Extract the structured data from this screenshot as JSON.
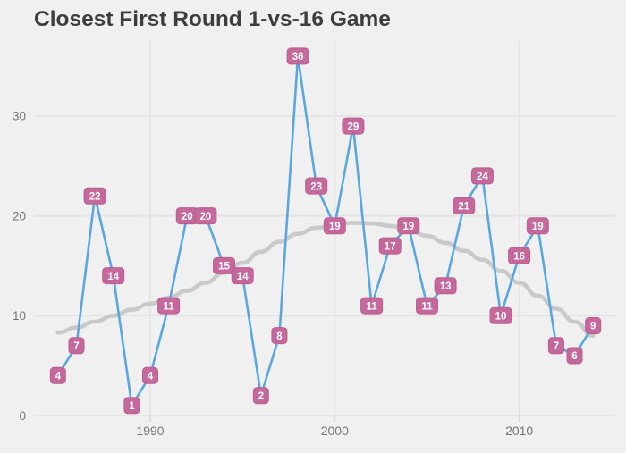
{
  "title": "Closest First Round 1-vs-16 Game",
  "colors": {
    "background": "#f0f0f0",
    "gridline": "#e2e2e2",
    "tick_mark": "#d7d7d7",
    "tick_text": "#757575",
    "title_text": "#3d3d3d",
    "line": "#5aa7de",
    "trend": "#c9c9c9",
    "label_bg": "#c5699c",
    "label_border": "#b85e91",
    "label_text": "#ffffff"
  },
  "chart_data": {
    "type": "line",
    "title": "Closest First Round 1-vs-16 Game",
    "xlabel": "",
    "ylabel": "",
    "x": [
      1985,
      1986,
      1987,
      1988,
      1989,
      1990,
      1991,
      1992,
      1993,
      1994,
      1995,
      1996,
      1997,
      1998,
      1999,
      2000,
      2001,
      2002,
      2003,
      2004,
      2005,
      2006,
      2007,
      2008,
      2009,
      2010,
      2011,
      2012,
      2013,
      2014
    ],
    "series": [
      {
        "name": "closest-margin",
        "values": [
          4,
          7,
          22,
          14,
          1,
          4,
          11,
          20,
          20,
          15,
          14,
          2,
          8,
          36,
          23,
          19,
          29,
          11,
          17,
          19,
          11,
          13,
          21,
          24,
          10,
          16,
          19,
          7,
          6,
          9
        ],
        "style": "line-with-labels"
      },
      {
        "name": "trend-smoother",
        "values": [
          8.3,
          8.8,
          9.4,
          10.0,
          10.6,
          11.2,
          11.8,
          12.5,
          13.3,
          14.3,
          15.3,
          16.4,
          17.4,
          18.2,
          18.8,
          19.1,
          19.3,
          19.25,
          19.0,
          18.6,
          18.0,
          17.3,
          16.5,
          15.6,
          14.5,
          13.3,
          12.0,
          10.7,
          9.4,
          8.0
        ],
        "style": "smooth-trend"
      }
    ],
    "x_ticks": [
      1990,
      2000,
      2010
    ],
    "x_tick_labels": [
      "1990",
      "2000",
      "2010"
    ],
    "y_ticks": [
      0,
      10,
      20,
      30
    ],
    "y_tick_labels": [
      "0",
      "10",
      "20",
      "30"
    ],
    "xlim": [
      1983.7,
      2015.3
    ],
    "ylim": [
      0,
      37.6
    ],
    "grid": true,
    "legend": false,
    "point_labels": true
  }
}
